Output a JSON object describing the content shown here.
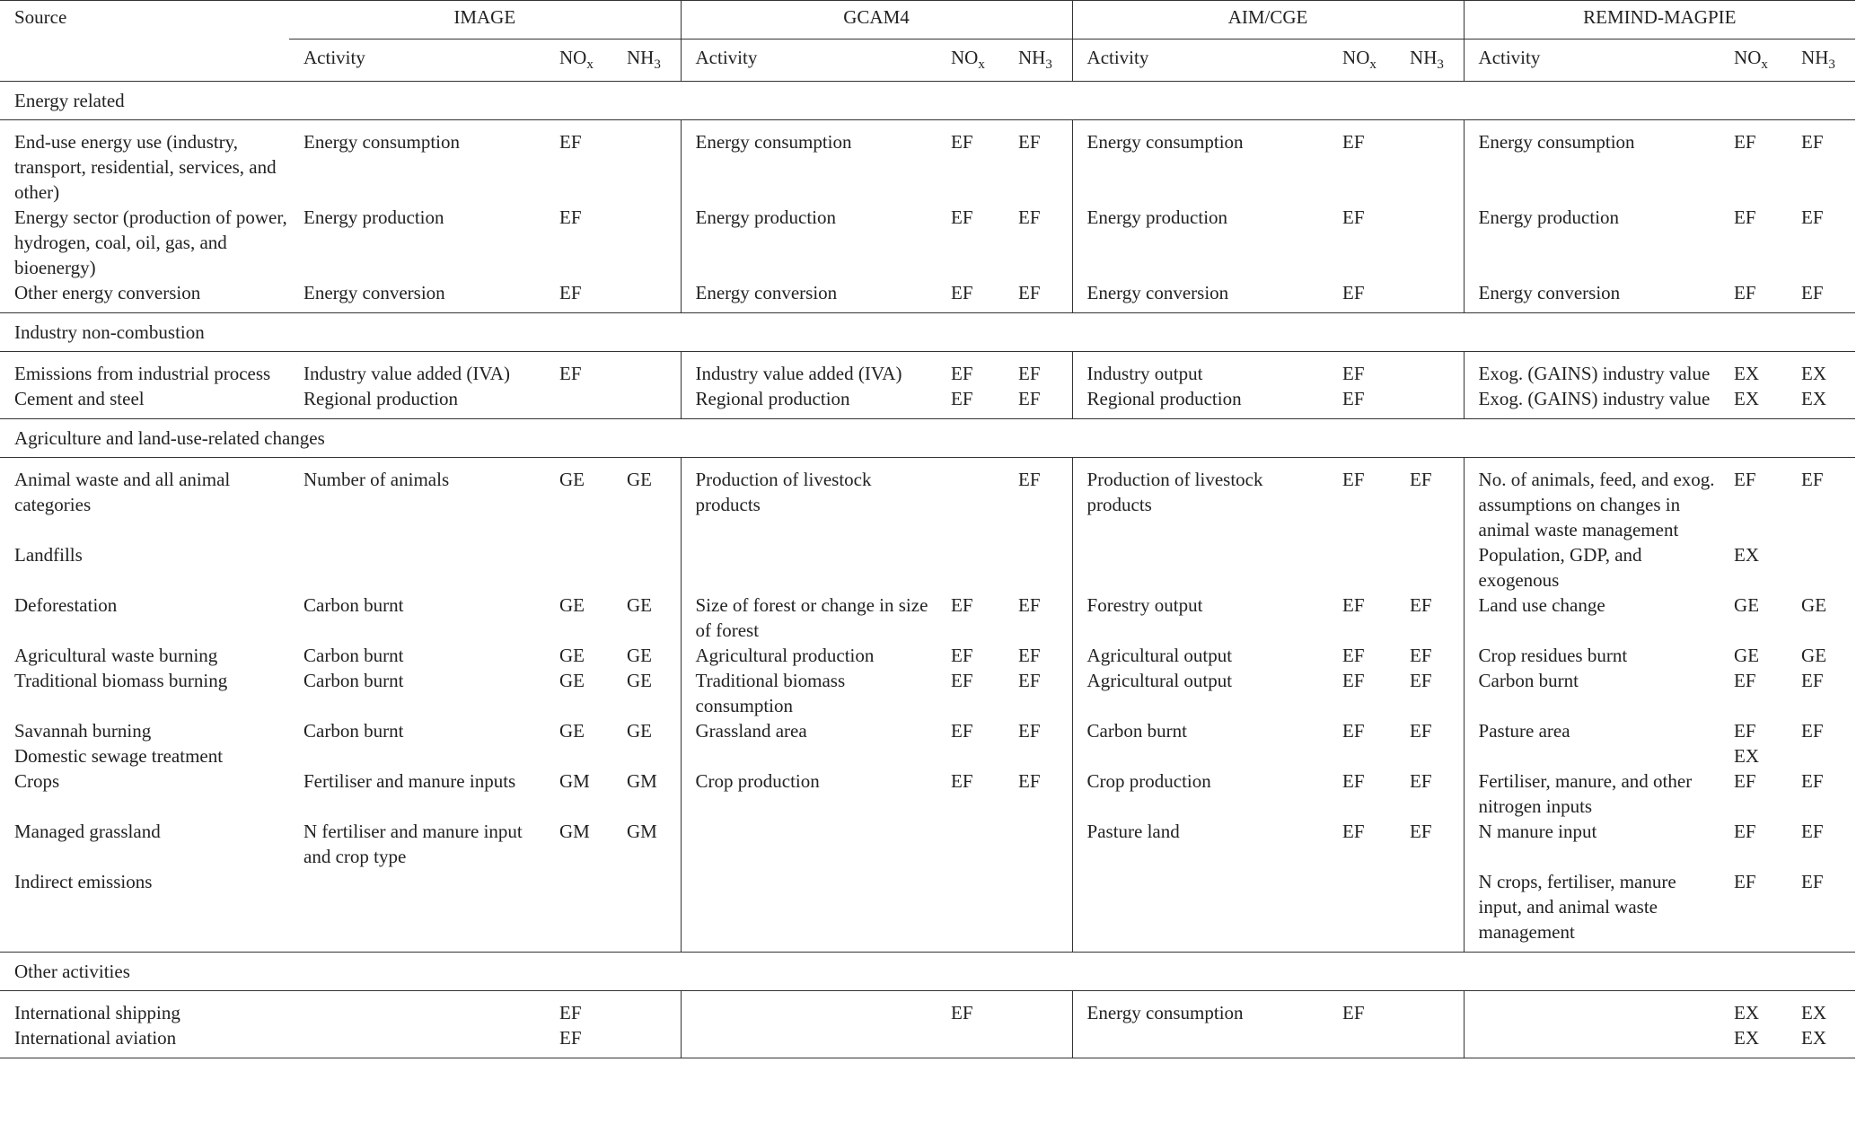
{
  "table": {
    "columns": {
      "source": "Source",
      "models": [
        "IMAGE",
        "GCAM4",
        "AIM/CGE",
        "REMIND-MAGPIE"
      ],
      "activity": "Activity",
      "nox": {
        "main": "NO",
        "sub": "x"
      },
      "nh3": {
        "main": "NH",
        "sub": "3"
      }
    },
    "sections": [
      {
        "title": "Energy related",
        "rows": [
          [
            "End-use energy use (industry, transport, residential, services, and other)",
            "Energy consumption",
            "EF",
            null,
            "Energy consumption",
            "EF",
            "EF",
            "Energy consumption",
            "EF",
            null,
            "Energy consumption",
            "EF",
            "EF"
          ],
          [
            "Energy sector (production of power, hydrogen, coal, oil, gas, and bioenergy)",
            "Energy production",
            "EF",
            null,
            "Energy production",
            "EF",
            "EF",
            "Energy production",
            "EF",
            null,
            "Energy production",
            "EF",
            "EF"
          ],
          [
            "Other energy conversion",
            "Energy conversion",
            "EF",
            null,
            "Energy conversion",
            "EF",
            "EF",
            "Energy conversion",
            "EF",
            null,
            "Energy conversion",
            "EF",
            "EF"
          ]
        ]
      },
      {
        "title": "Industry non-combustion",
        "rows": [
          [
            "Emissions from industrial process",
            "Industry value added (IVA)",
            "EF",
            null,
            "Industry value added (IVA)",
            "EF",
            "EF",
            "Industry output",
            "EF",
            null,
            "Exog. (GAINS) industry value",
            "EX",
            "EX"
          ],
          [
            "Cement and steel",
            "Regional production",
            null,
            null,
            "Regional production",
            "EF",
            "EF",
            "Regional production",
            "EF",
            null,
            "Exog. (GAINS) industry value",
            "EX",
            "EX"
          ]
        ]
      },
      {
        "title": "Agriculture and land-use-related changes",
        "rows": [
          [
            "Animal waste and all animal categories",
            "Number of animals",
            "GE",
            "GE",
            "Production of livestock products",
            null,
            "EF",
            "Production of livestock products",
            "EF",
            "EF",
            "No. of animals, feed, and exog. assumptions on changes in animal waste management",
            "EF",
            "EF"
          ],
          [
            "Landfills",
            null,
            null,
            null,
            null,
            null,
            null,
            null,
            null,
            null,
            "Population, GDP, and exogenous",
            "EX",
            null
          ],
          [
            "Deforestation",
            "Carbon burnt",
            "GE",
            "GE",
            "Size of forest or change in size of forest",
            "EF",
            "EF",
            "Forestry output",
            "EF",
            "EF",
            "Land use change",
            "GE",
            "GE"
          ],
          [
            "Agricultural waste burning",
            "Carbon burnt",
            "GE",
            "GE",
            "Agricultural production",
            "EF",
            "EF",
            "Agricultural output",
            "EF",
            "EF",
            "Crop residues burnt",
            "GE",
            "GE"
          ],
          [
            "Traditional biomass burning",
            "Carbon burnt",
            "GE",
            "GE",
            "Traditional biomass consumption",
            "EF",
            "EF",
            "Agricultural output",
            "EF",
            "EF",
            "Carbon burnt",
            "EF",
            "EF"
          ],
          [
            "Savannah burning",
            "Carbon burnt",
            "GE",
            "GE",
            "Grassland area",
            "EF",
            "EF",
            "Carbon burnt",
            "EF",
            "EF",
            "Pasture area",
            "EF",
            "EF"
          ],
          [
            "Domestic sewage treatment",
            null,
            null,
            null,
            null,
            null,
            null,
            null,
            null,
            null,
            null,
            "EX",
            null
          ],
          [
            "Crops",
            "Fertiliser and manure inputs",
            "GM",
            "GM",
            "Crop production",
            "EF",
            "EF",
            "Crop production",
            "EF",
            "EF",
            "Fertiliser, manure, and other nitrogen inputs",
            "EF",
            "EF"
          ],
          [
            "Managed grassland",
            "N fertiliser and manure input and crop type",
            "GM",
            "GM",
            null,
            null,
            null,
            "Pasture land",
            "EF",
            "EF",
            "N manure input",
            "EF",
            "EF"
          ],
          [
            "Indirect emissions",
            null,
            null,
            null,
            null,
            null,
            null,
            null,
            null,
            null,
            "N crops, fertiliser, manure input, and animal waste management",
            "EF",
            "EF"
          ]
        ]
      },
      {
        "title": "Other activities",
        "rows": [
          [
            "International shipping",
            null,
            "EF",
            null,
            null,
            "EF",
            null,
            "Energy consumption",
            "EF",
            null,
            null,
            "EX",
            "EX"
          ],
          [
            "International aviation",
            null,
            "EF",
            null,
            null,
            null,
            null,
            null,
            null,
            null,
            null,
            "EX",
            "EX"
          ]
        ]
      }
    ]
  }
}
